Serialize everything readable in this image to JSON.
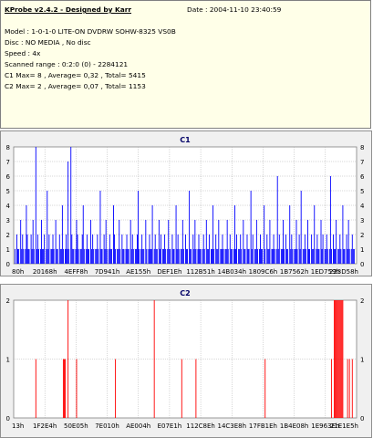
{
  "header": {
    "title": "KProbe v2.4.2 - Designed by Karr",
    "date": "Date : 2004-11-10 23:40:59",
    "lines": [
      "Model : 1-0-1-0 LITE-ON DVDRW SOHW-8325  VS0B",
      "Disc : NO MEDIA , No disc",
      "Speed : 4x",
      "Scanned range : 0:2:0 (0) - 2284121",
      "C1 Max= 8 , Average= 0,32 , Total= 5415",
      "C2 Max= 2 , Average= 0,07 , Total= 1153"
    ]
  },
  "colors": {
    "c1": "#0000ff",
    "c2": "#ff0000",
    "grid": "#b0b0b0",
    "plot_bg": "#ffffff",
    "panel_bg": "#f0f0f0"
  },
  "chart_data": [
    {
      "type": "bar",
      "title": "C1",
      "ylim": [
        0,
        8
      ],
      "y_ticks": [
        0,
        1,
        2,
        3,
        4,
        5,
        6,
        7,
        8
      ],
      "x_tick_labels": [
        "80h",
        "20168h",
        "4EFF8h",
        "7D941h",
        "AE155h",
        "DEF1Eh",
        "112B51h",
        "14B034h",
        "1809C6h",
        "1B7562h",
        "1ED759h",
        "223D58h"
      ],
      "grid": true,
      "max_value": 8,
      "average": 0.32,
      "total": 5415,
      "values": [
        1,
        0,
        2,
        1,
        1,
        0,
        3,
        1,
        2,
        1,
        0,
        1,
        4,
        2,
        1,
        1,
        0,
        2,
        1,
        3,
        1,
        0,
        8,
        1,
        2,
        1,
        0,
        1,
        3,
        1,
        1,
        2,
        0,
        1,
        5,
        1,
        2,
        0,
        1,
        1,
        2,
        1,
        0,
        3,
        1,
        1,
        0,
        2,
        1,
        1,
        4,
        1,
        0,
        1,
        2,
        1,
        7,
        1,
        0,
        8,
        2,
        1,
        1,
        0,
        1,
        3,
        2,
        1,
        0,
        1,
        1,
        2,
        4,
        1,
        0,
        1,
        2,
        1,
        1,
        0,
        3,
        1,
        2,
        1,
        0,
        1,
        1,
        2,
        1,
        0,
        5,
        1,
        1,
        0,
        2,
        1,
        3,
        1,
        0,
        1,
        2,
        1,
        1,
        0,
        4,
        2,
        1,
        0,
        1,
        1,
        3,
        1,
        0,
        2,
        1,
        1,
        0,
        1,
        2,
        1,
        1,
        0,
        3,
        1,
        2,
        1,
        0,
        1,
        1,
        2,
        5,
        1,
        0,
        1,
        2,
        1,
        1,
        0,
        3,
        1,
        0,
        1,
        2,
        1,
        1,
        4,
        0,
        1,
        2,
        1,
        1,
        0,
        3,
        1,
        2,
        0,
        1,
        1,
        2,
        1,
        0,
        1,
        3,
        1,
        1,
        0,
        2,
        1,
        1,
        0,
        4,
        1,
        2,
        1,
        0,
        1,
        1,
        3,
        1,
        0,
        2,
        1,
        1,
        0,
        5,
        1,
        1,
        0,
        2,
        1,
        3,
        1,
        0,
        1,
        2,
        1,
        1,
        0,
        1,
        2,
        1,
        0,
        3,
        1,
        1,
        2,
        0,
        1,
        1,
        4,
        1,
        0,
        2,
        1,
        1,
        3,
        0,
        1,
        1,
        2,
        1,
        0,
        1,
        1,
        3,
        1,
        0,
        2,
        1,
        1,
        0,
        1,
        4,
        1,
        2,
        0,
        1,
        1,
        2,
        1,
        0,
        3,
        1,
        1,
        0,
        2,
        1,
        1,
        0,
        5,
        1,
        2,
        0,
        1,
        1,
        3,
        1,
        0,
        1,
        2,
        1,
        1,
        0,
        4,
        1,
        0,
        2,
        1,
        1,
        3,
        0,
        1,
        1,
        2,
        1,
        0,
        1,
        6,
        1,
        2,
        0,
        1,
        1,
        3,
        1,
        0,
        2,
        1,
        1,
        0,
        4,
        1,
        2,
        1,
        0,
        1,
        1,
        3,
        1,
        0,
        2,
        1,
        5,
        0,
        1,
        1,
        2,
        1,
        0,
        3,
        1,
        1,
        0,
        2,
        1,
        1,
        4,
        0,
        1,
        2,
        1,
        1,
        0,
        3,
        1,
        2,
        0,
        1,
        1,
        2,
        1,
        0,
        1,
        6,
        1,
        0,
        2,
        1,
        1,
        3,
        0,
        1,
        1,
        2,
        1,
        0,
        4,
        1,
        1,
        0,
        2,
        1,
        3,
        1,
        0,
        1,
        2,
        1,
        1,
        0
      ]
    },
    {
      "type": "bar",
      "title": "C2",
      "ylim": [
        0,
        2
      ],
      "y_ticks": [
        0,
        1,
        2
      ],
      "x_tick_labels": [
        "13h",
        "1F2E4h",
        "50E05h",
        "7E010h",
        "AE004h",
        "E07E1h",
        "112C8Eh",
        "14C3E8h",
        "17FB1Eh",
        "1B4E08h",
        "1E963Eh",
        "21E1E5h"
      ],
      "grid": true,
      "max_value": 2,
      "average": 0.07,
      "total": 1153,
      "values": [
        0,
        0,
        0,
        0,
        0,
        0,
        0,
        0,
        0,
        0,
        0,
        0,
        0,
        0,
        0,
        0,
        0,
        0,
        0,
        0,
        0,
        0,
        1,
        0,
        0,
        0,
        0,
        0,
        0,
        0,
        0,
        0,
        0,
        0,
        0,
        0,
        0,
        0,
        0,
        0,
        0,
        0,
        0,
        0,
        0,
        0,
        0,
        0,
        0,
        0,
        0,
        1,
        1,
        1,
        0,
        0,
        2,
        0,
        0,
        0,
        0,
        0,
        0,
        0,
        0,
        1,
        0,
        0,
        0,
        0,
        0,
        0,
        0,
        0,
        0,
        0,
        0,
        0,
        0,
        0,
        0,
        0,
        0,
        0,
        0,
        0,
        0,
        0,
        0,
        0,
        0,
        0,
        0,
        0,
        0,
        0,
        0,
        0,
        0,
        0,
        0,
        0,
        0,
        0,
        0,
        0,
        1,
        0,
        0,
        0,
        0,
        0,
        0,
        0,
        0,
        0,
        0,
        0,
        0,
        0,
        0,
        0,
        0,
        0,
        0,
        0,
        0,
        0,
        0,
        0,
        0,
        0,
        0,
        0,
        0,
        0,
        0,
        0,
        0,
        0,
        0,
        0,
        0,
        0,
        0,
        0,
        0,
        2,
        0,
        0,
        0,
        0,
        0,
        0,
        0,
        0,
        0,
        0,
        0,
        0,
        0,
        0,
        0,
        0,
        0,
        0,
        0,
        0,
        0,
        0,
        0,
        0,
        0,
        0,
        0,
        0,
        1,
        0,
        0,
        0,
        0,
        0,
        0,
        0,
        0,
        0,
        0,
        0,
        0,
        0,
        0,
        1,
        0,
        0,
        0,
        0,
        0,
        0,
        0,
        0,
        0,
        0,
        0,
        0,
        0,
        0,
        0,
        0,
        0,
        0,
        0,
        0,
        0,
        0,
        0,
        0,
        0,
        0,
        0,
        0,
        0,
        0,
        0,
        0,
        0,
        0,
        0,
        0,
        0,
        0,
        0,
        0,
        0,
        0,
        0,
        0,
        0,
        0,
        0,
        0,
        0,
        0,
        0,
        0,
        0,
        0,
        0,
        0,
        0,
        0,
        0,
        0,
        0,
        0,
        0,
        0,
        0,
        0,
        0,
        0,
        0,
        0,
        0,
        0,
        1,
        0,
        0,
        0,
        0,
        0,
        0,
        0,
        0,
        0,
        0,
        0,
        0,
        0,
        0,
        0,
        0,
        0,
        0,
        0,
        0,
        0,
        0,
        0,
        0,
        0,
        0,
        0,
        0,
        0,
        0,
        0,
        0,
        0,
        0,
        0,
        0,
        0,
        0,
        0,
        0,
        0,
        0,
        0,
        0,
        0,
        0,
        0,
        0,
        0,
        0,
        0,
        0,
        0,
        0,
        0,
        0,
        0,
        0,
        0,
        0,
        0,
        0,
        0,
        0,
        0,
        0,
        0,
        0,
        0,
        1,
        0,
        0,
        2,
        2,
        2,
        2,
        2,
        2,
        2,
        2,
        2,
        2,
        0,
        0,
        0,
        0,
        1,
        0,
        1,
        0,
        0,
        1,
        0,
        0,
        0
      ]
    }
  ]
}
